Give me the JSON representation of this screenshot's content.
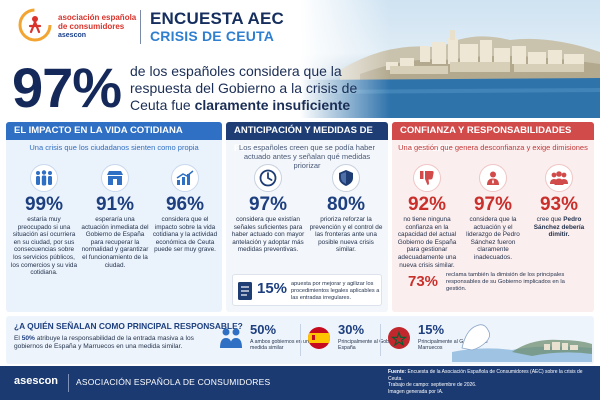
{
  "header": {
    "org_name": "asociación española de consumidores",
    "org_sub": "asescon",
    "title_line1": "ENCUESTA AEC",
    "title_line2": "CRISIS DE CEUTA"
  },
  "hero": {
    "percent": "97%",
    "text_part1": "de los españoles considera que la respuesta del Gobierno a la crisis de Ceuta fue ",
    "text_part2": "claramente insuficiente"
  },
  "panel1": {
    "title": "EL IMPACTO EN LA VIDA COTIDIANA",
    "subtitle": "Una crisis que los ciudadanos sienten como propia",
    "stats": [
      {
        "value": "99%",
        "icon": "family-icon",
        "desc": "estaría muy preocupado si una situación así ocurriera en su ciudad, por sus consecuencias sobre los servicios públicos, los comercios y su vida cotidiana."
      },
      {
        "value": "91%",
        "icon": "shop-icon",
        "desc": "esperaría una actuación inmediata del Gobierno de España para recuperar la normalidad y garantizar el funcionamiento de la ciudad."
      },
      {
        "value": "96%",
        "icon": "chart-icon",
        "desc": "considera que el impacto sobre la vida cotidiana y la actividad económica de Ceuta puede ser muy grave."
      }
    ]
  },
  "panel2": {
    "title": "ANTICIPACIÓN Y MEDIDAS DE FUTURO",
    "subtitle": "Los españoles creen que se podía haber actuado antes y señalan qué medidas priorizar",
    "stats": [
      {
        "value": "97%",
        "icon": "clock-icon",
        "desc": "considera que existían señales suficientes para haber actuado con mayor antelación y adoptar más medidas preventivas."
      },
      {
        "value": "80%",
        "icon": "shield-icon",
        "desc": "prioriza reforzar la prevención y el control de las fronteras ante una posible nueva crisis similar."
      }
    ],
    "bottom": {
      "value": "15%",
      "desc": "apuesta por mejorar y agilizar los procedimientos legales aplicables a las entradas irregulares."
    }
  },
  "panel3": {
    "title": "CONFIANZA Y RESPONSABILIDADES POLÍTICAS",
    "subtitle": "Una gestión que genera desconfianza y exige dimisiones",
    "stats": [
      {
        "value": "92%",
        "icon": "thumbs-down-icon",
        "desc": "no tiene ninguna confianza en la capacidad del actual Gobierno de España para gestionar adecuadamente una nueva crisis similar."
      },
      {
        "value": "97%",
        "icon": "leader-icon",
        "desc": "considera que la actuación y el liderazgo de Pedro Sánchez fueron claramente inadecuados."
      },
      {
        "value": "93%",
        "icon": "group-icon",
        "desc_part1": "cree que ",
        "desc_part2": "Pedro Sánchez debería dimitir."
      }
    ],
    "bottom": {
      "value": "73%",
      "desc": "reclama también la dimisión de los principales responsables de su Gobierno implicados en la gestión."
    }
  },
  "band": {
    "question": "¿A QUIÉN SEÑALAN COMO PRINCIPAL RESPONSABLE?",
    "text_pre": "El ",
    "text_bold": "50%",
    "text_post": " atribuye la responsabilidad de la entrada masiva a los gobiernos de España y Marruecos en una medida similar.",
    "items": [
      {
        "value": "50%",
        "icon": "people-icon",
        "desc": "A ambos gobiernos en una medida similar"
      },
      {
        "value": "30%",
        "icon": "spain-flag-icon",
        "desc": "Principalmente al Gobierno de España"
      },
      {
        "value": "15%",
        "icon": "morocco-flag-icon",
        "desc": "Principalmente al Gobierno de Marruecos"
      }
    ]
  },
  "footer": {
    "brand": "asescon",
    "org": "ASOCIACIÓN ESPAÑOLA DE CONSUMIDORES",
    "source_label": "Fuente:",
    "source": " Encuesta de la Asociación Española de Consumidores (AEC) sobre la crisis de Ceuta.",
    "fieldwork": "Trabajo de campo: septiembre de 2026.",
    "image_note": "Imagen generada por IA."
  },
  "colors": {
    "navy": "#1b3a72",
    "blue": "#2f6fc4",
    "red": "#d24b4b",
    "accent_red": "#c9302c"
  }
}
